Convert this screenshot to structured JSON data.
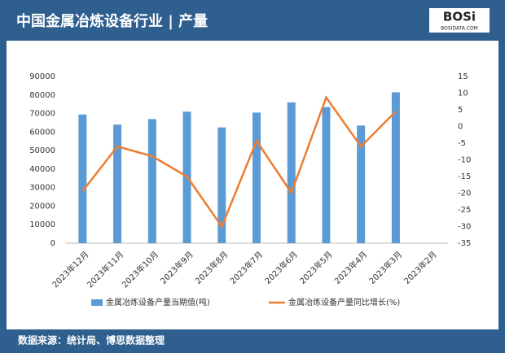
{
  "header": {
    "title": "中国金属冶炼设备行业 | 产量",
    "logo": "BOSi",
    "logo_sub": "BOSIDATA.COM"
  },
  "footer": {
    "source": "数据来源：统计局、博思数据整理"
  },
  "chart_data": {
    "type": "bar-line",
    "categories": [
      "2023年12月",
      "2023年11月",
      "2023年10月",
      "2023年9月",
      "2023年8月",
      "2023年7月",
      "2023年6月",
      "2023年5月",
      "2023年4月",
      "2023年3月",
      "2023年2月"
    ],
    "series": [
      {
        "name": "金属冶炼设备产量当期值(吨)",
        "color": "#5b9bd5",
        "type": "bar",
        "values": [
          69500,
          64000,
          67000,
          71000,
          62500,
          70500,
          76000,
          73500,
          63500,
          81500,
          null
        ]
      },
      {
        "name": "金属冶炼设备产量同比增长(%)",
        "color": "#ed7d31",
        "type": "line",
        "axis": "y2",
        "values": [
          -19.4,
          -6,
          -8.9,
          -15,
          -30,
          -4.3,
          -19.9,
          8.7,
          -6,
          4.5,
          null
        ]
      }
    ],
    "ylim": [
      0,
      90000
    ],
    "yticks": [
      0,
      10000,
      20000,
      30000,
      40000,
      50000,
      60000,
      70000,
      80000,
      90000
    ],
    "y2lim": [
      -35,
      15
    ],
    "y2ticks": [
      -35,
      -30,
      -25,
      -20,
      -15,
      -10,
      -5,
      0,
      5,
      10,
      15
    ],
    "grid": false
  }
}
